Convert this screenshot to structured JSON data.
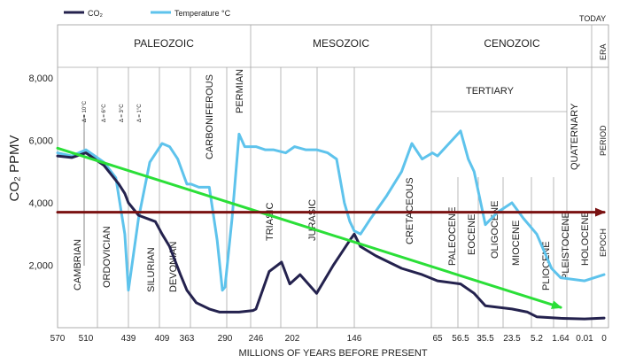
{
  "chart_data": {
    "type": "line",
    "ylabel": "CO₂ PPMV",
    "xlabel": "MILLIONS OF YEARS BEFORE PRESENT",
    "ylim": [
      0,
      8000
    ],
    "legend": {
      "placement": "top-left",
      "items": [
        {
          "label": "CO₂",
          "color": "#24224e"
        },
        {
          "label": "Temperature °C",
          "color": "#5ec3ec"
        }
      ]
    },
    "y_ticks": [
      "2,000",
      "4,000",
      "6,000",
      "8,000"
    ],
    "y_tick_values": [
      2000,
      4000,
      6000,
      8000
    ],
    "x_ticks": [
      "570",
      "510",
      "439",
      "409",
      "363",
      "290",
      "246",
      "202",
      "146",
      "65",
      "56.5",
      "35.5",
      "23.5",
      "5.2",
      "1.64",
      "0.01",
      "0"
    ],
    "band_labels": {
      "today": "TODAY",
      "era": "ERA",
      "period": "PERIOD",
      "epoch": "EPOCH"
    },
    "eras": [
      "PALEOZOIC",
      "MESOZOIC",
      "CENOZOIC"
    ],
    "periods": [
      "CARBONIFEROUS",
      "PERMIAN",
      "CRETACEOUS",
      "TERTIARY",
      "QUATERNARY"
    ],
    "epochs": [
      "CAMBRIAN",
      "ORDOVICIAN",
      "SILURIAN",
      "DEVONIAN",
      "TRIASIC",
      "JURASIC",
      "PALEOCENE",
      "EOCENE",
      "OLIGOCENE",
      "MIOCENE",
      "PLIOCENE",
      "PLEISTOCENE",
      "HOLOCENE"
    ],
    "temp_markers": [
      "Δ = 10°C",
      "Δ = 6°C",
      "Δ = 3°C",
      "Δ = 1°C"
    ],
    "series": [
      {
        "name": "CO₂",
        "color": "#24224e",
        "x_ma": [
          570,
          540,
          510,
          480,
          455,
          445,
          439,
          430,
          415,
          409,
          395,
          375,
          363,
          345,
          320,
          300,
          290,
          270,
          250,
          246,
          230,
          215,
          205,
          195,
          180,
          165,
          150,
          146,
          140,
          125,
          100,
          80,
          65,
          56.5,
          45,
          35.5,
          23.5,
          12,
          5.2,
          1.64,
          0.01,
          0
        ],
        "values": [
          5500,
          5450,
          5600,
          5200,
          4600,
          4300,
          4000,
          3600,
          3400,
          3000,
          2600,
          1700,
          1200,
          800,
          600,
          500,
          500,
          500,
          550,
          600,
          1800,
          2100,
          1400,
          1700,
          1100,
          2000,
          2800,
          3000,
          2600,
          2300,
          1900,
          1700,
          1500,
          1400,
          1100,
          700,
          600,
          500,
          350,
          300,
          280,
          310
        ]
      },
      {
        "name": "Temperature °C",
        "color": "#5ec3ec",
        "x_ma": [
          570,
          540,
          510,
          480,
          460,
          445,
          439,
          430,
          420,
          409,
          395,
          380,
          363,
          355,
          340,
          320,
          305,
          295,
          290,
          280,
          270,
          262,
          255,
          246,
          235,
          225,
          210,
          200,
          190,
          180,
          170,
          162,
          155,
          150,
          146,
          140,
          130,
          115,
          100,
          90,
          80,
          70,
          65,
          56.5,
          50,
          45,
          35.5,
          30,
          23.5,
          15,
          5.2,
          3,
          1.64,
          0.01,
          0
        ],
        "values": [
          5600,
          5500,
          5700,
          5300,
          4800,
          3000,
          1200,
          3500,
          5300,
          5900,
          5800,
          5400,
          4600,
          4600,
          4500,
          4500,
          2800,
          1200,
          1300,
          3500,
          6200,
          5800,
          5800,
          5800,
          5700,
          5700,
          5600,
          5800,
          5700,
          5700,
          5600,
          5400,
          4000,
          3400,
          3100,
          3000,
          3500,
          4200,
          5000,
          5900,
          5400,
          5600,
          5500,
          6300,
          5400,
          5000,
          3300,
          3700,
          4000,
          3500,
          3000,
          1900,
          1600,
          1500,
          1700
        ]
      },
      {
        "name": "",
        "color": "#2bdf38",
        "x_ma": [
          570,
          1.64
        ],
        "values": [
          5750,
          650
        ]
      },
      {
        "name": "",
        "color": "#7a1212",
        "x_ma": [
          570,
          0
        ],
        "values": [
          3700,
          3700
        ]
      }
    ]
  }
}
